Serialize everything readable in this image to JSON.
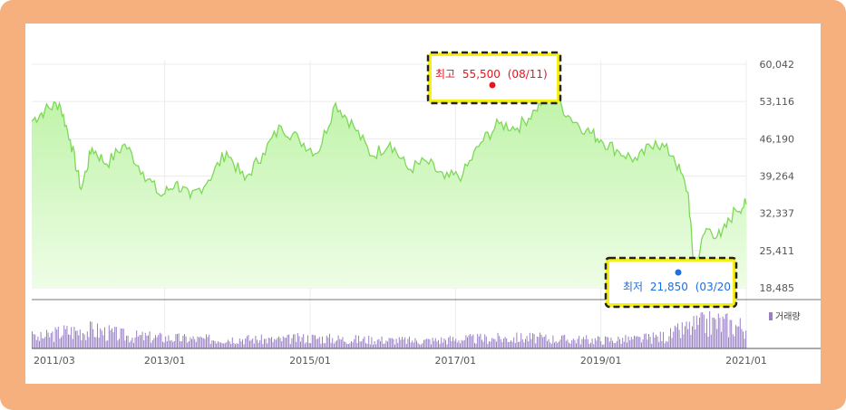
{
  "chart_data": {
    "type": "area",
    "price_axis": {
      "ticks": [
        "60,042",
        "53,116",
        "46,190",
        "39,264",
        "32,337",
        "25,411",
        "18,485"
      ],
      "tick_values": [
        60042,
        53116,
        46190,
        39264,
        32337,
        25411,
        18485
      ],
      "range": [
        18485,
        60042
      ]
    },
    "x_axis": {
      "ticks": [
        "2011/03",
        "2013/01",
        "2015/01",
        "2017/01",
        "2019/01",
        "2021/01"
      ],
      "range": [
        "2011/03",
        "2021/01"
      ]
    },
    "volume_legend": "거래량",
    "annotations": {
      "high": {
        "label": "최고",
        "value": "55,500",
        "date": "(08/11)",
        "price": 55500
      },
      "low": {
        "label": "최저",
        "value": "21,850",
        "date": "(03/20",
        "price": 21850
      }
    },
    "price_series": [
      {
        "x": 2011.17,
        "y": 49500
      },
      {
        "x": 2011.35,
        "y": 51500
      },
      {
        "x": 2011.55,
        "y": 52800
      },
      {
        "x": 2011.7,
        "y": 46000
      },
      {
        "x": 2011.85,
        "y": 36800
      },
      {
        "x": 2012.0,
        "y": 44500
      },
      {
        "x": 2012.2,
        "y": 41500
      },
      {
        "x": 2012.45,
        "y": 45200
      },
      {
        "x": 2012.7,
        "y": 40000
      },
      {
        "x": 2012.95,
        "y": 35500
      },
      {
        "x": 2013.15,
        "y": 38000
      },
      {
        "x": 2013.35,
        "y": 35200
      },
      {
        "x": 2013.6,
        "y": 38500
      },
      {
        "x": 2013.85,
        "y": 43800
      },
      {
        "x": 2014.1,
        "y": 38500
      },
      {
        "x": 2014.35,
        "y": 43500
      },
      {
        "x": 2014.6,
        "y": 48500
      },
      {
        "x": 2014.85,
        "y": 46000
      },
      {
        "x": 2015.1,
        "y": 43500
      },
      {
        "x": 2015.35,
        "y": 52800
      },
      {
        "x": 2015.6,
        "y": 48500
      },
      {
        "x": 2015.85,
        "y": 43000
      },
      {
        "x": 2016.1,
        "y": 45500
      },
      {
        "x": 2016.35,
        "y": 40500
      },
      {
        "x": 2016.6,
        "y": 42000
      },
      {
        "x": 2016.85,
        "y": 38800
      },
      {
        "x": 2017.1,
        "y": 39500
      },
      {
        "x": 2017.35,
        "y": 45500
      },
      {
        "x": 2017.6,
        "y": 49000
      },
      {
        "x": 2017.85,
        "y": 48200
      },
      {
        "x": 2018.1,
        "y": 51500
      },
      {
        "x": 2018.3,
        "y": 55500
      },
      {
        "x": 2018.55,
        "y": 50500
      },
      {
        "x": 2018.8,
        "y": 47800
      },
      {
        "x": 2019.0,
        "y": 46000
      },
      {
        "x": 2019.25,
        "y": 43800
      },
      {
        "x": 2019.5,
        "y": 42200
      },
      {
        "x": 2019.75,
        "y": 45800
      },
      {
        "x": 2020.0,
        "y": 43000
      },
      {
        "x": 2020.2,
        "y": 36200
      },
      {
        "x": 2020.28,
        "y": 22000
      },
      {
        "x": 2020.45,
        "y": 29500
      },
      {
        "x": 2020.65,
        "y": 28000
      },
      {
        "x": 2020.85,
        "y": 33000
      },
      {
        "x": 2021.0,
        "y": 34000
      }
    ],
    "volume_series": [
      {
        "x": 2011.2,
        "y": 30
      },
      {
        "x": 2011.6,
        "y": 55
      },
      {
        "x": 2012.0,
        "y": 60
      },
      {
        "x": 2012.5,
        "y": 40
      },
      {
        "x": 2013.0,
        "y": 35
      },
      {
        "x": 2013.5,
        "y": 30
      },
      {
        "x": 2014.0,
        "y": 32
      },
      {
        "x": 2014.5,
        "y": 28
      },
      {
        "x": 2015.0,
        "y": 35
      },
      {
        "x": 2015.5,
        "y": 30
      },
      {
        "x": 2016.0,
        "y": 28
      },
      {
        "x": 2016.5,
        "y": 25
      },
      {
        "x": 2017.0,
        "y": 30
      },
      {
        "x": 2017.5,
        "y": 33
      },
      {
        "x": 2018.0,
        "y": 35
      },
      {
        "x": 2018.5,
        "y": 30
      },
      {
        "x": 2019.0,
        "y": 28
      },
      {
        "x": 2019.5,
        "y": 30
      },
      {
        "x": 2019.9,
        "y": 40
      },
      {
        "x": 2020.3,
        "y": 75
      },
      {
        "x": 2020.6,
        "y": 85
      },
      {
        "x": 2021.0,
        "y": 70
      }
    ],
    "grid": true
  },
  "colors": {
    "frame": "#f5b07d",
    "line": "#7ed957",
    "fill_top": "#bdf3a6",
    "fill_bottom": "#eefde6",
    "volume": "#9a7fc8",
    "high": "#e8141c",
    "low": "#1e6fe0",
    "highlight_box": "#f7f016"
  }
}
